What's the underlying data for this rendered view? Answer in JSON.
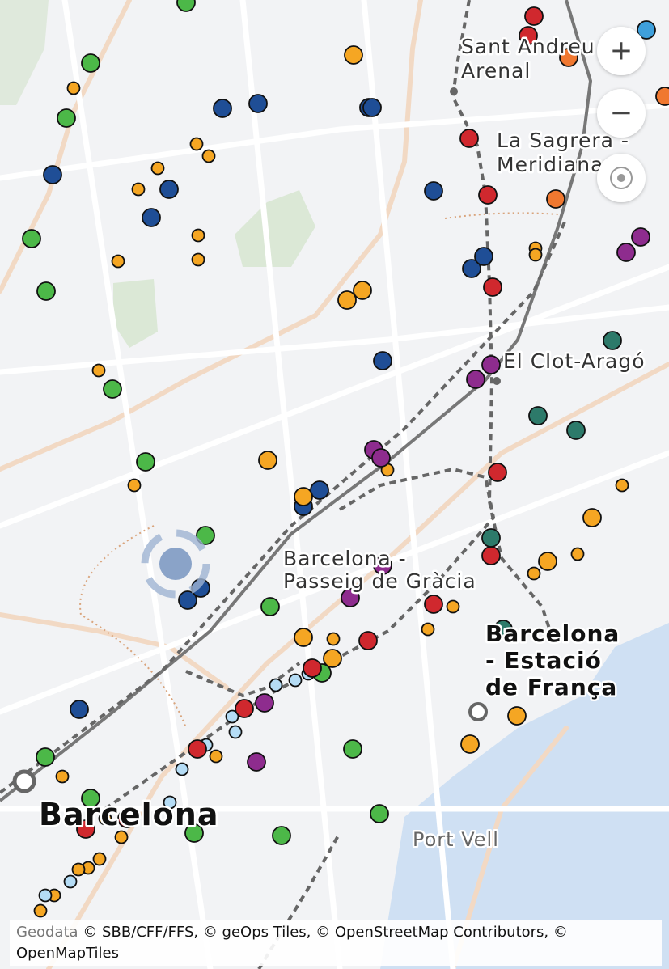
{
  "labels": {
    "sant_andreu": [
      "Sant Andreu",
      "Arenal"
    ],
    "la_sagrera": [
      "La Sagrera -",
      "Meridiana"
    ],
    "el_clot": [
      "El Clot-Aragó"
    ],
    "passeig_de_gracia": [
      "Barcelona -",
      "Passeig de Gràcia"
    ],
    "estacio_de_franca": [
      "Barcelona",
      "- Estació",
      "de França"
    ],
    "barcelona": [
      "Barcelona"
    ],
    "port_vell": [
      "Port Vell"
    ]
  },
  "controls": {
    "zoom_in": "+",
    "zoom_out": "−"
  },
  "attribution": {
    "link": "Geodata",
    "text": "© SBB/CFF/FFS, © geOps Tiles, © OpenStreetMap Contributors, © OpenMapTiles"
  }
}
